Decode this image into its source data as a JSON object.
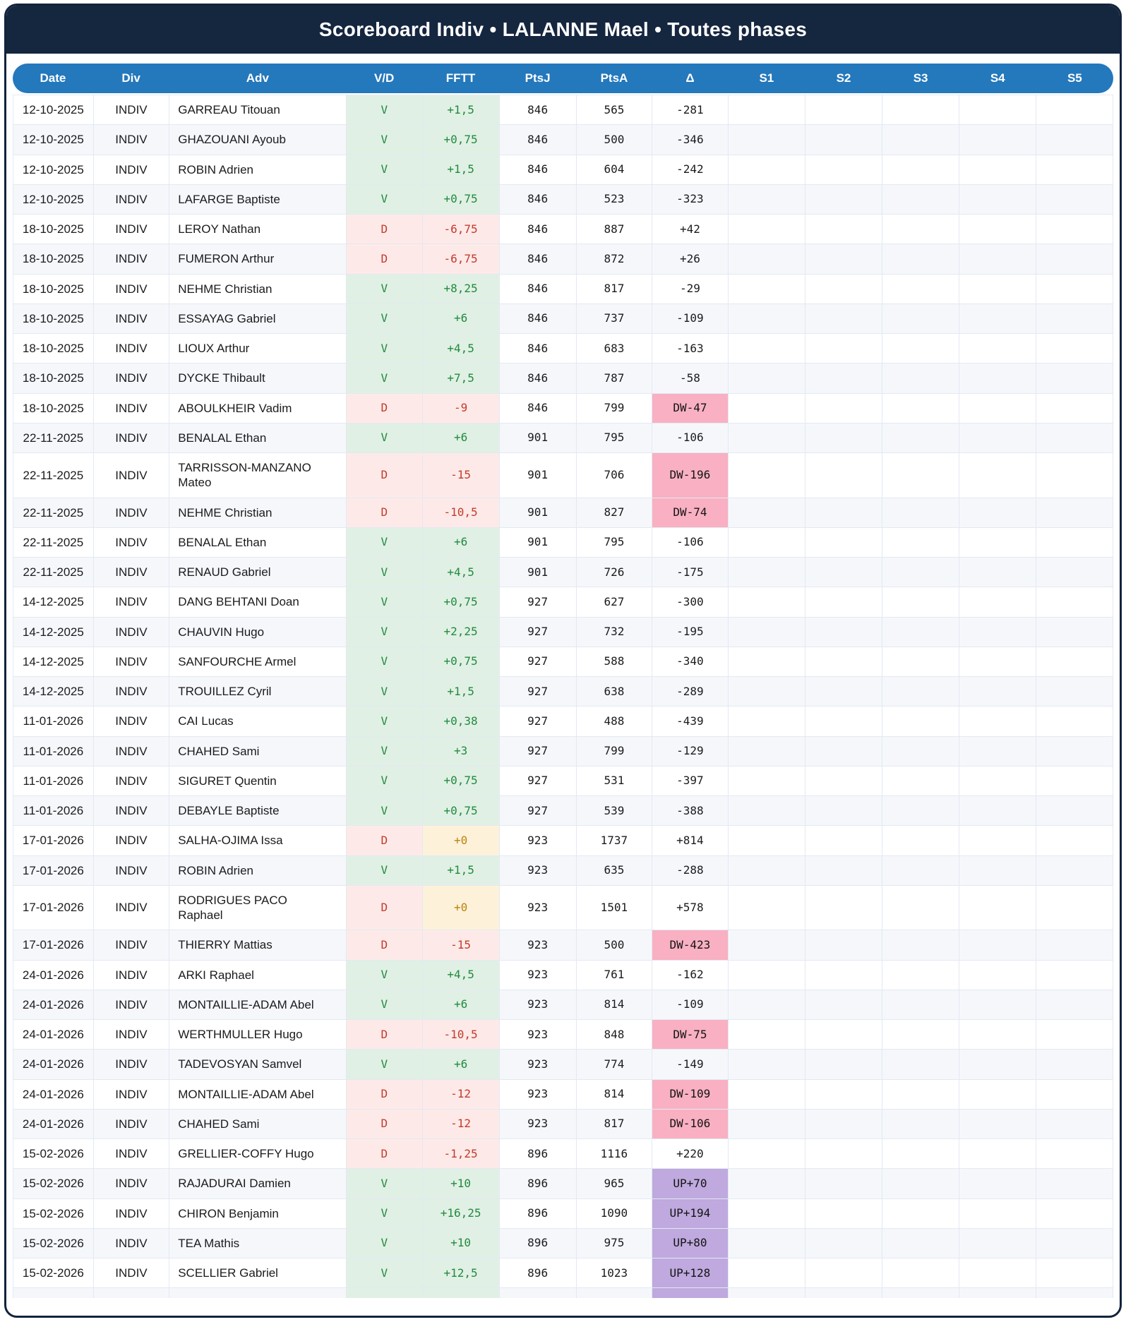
{
  "window": {
    "title": "Scoreboard Indiv • LALANNE Mael • Toutes phases"
  },
  "colors": {
    "title_bar_bg": "#15263f",
    "header_bg": "#2478bc",
    "win_bg": "#e1f0e5",
    "win_text": "#208b3d",
    "loss_bg": "#fdeae8",
    "loss_text": "#c33a2d",
    "zero_bg": "#fdf2d9",
    "zero_text": "#bc830e",
    "down_badge_bg": "#f8b0c2",
    "up_badge_bg": "#bfa9de",
    "row_alt_bg": "#f5f7fb"
  },
  "table": {
    "columns": [
      {
        "key": "date",
        "label": "Date"
      },
      {
        "key": "div",
        "label": "Div"
      },
      {
        "key": "adv",
        "label": "Adv"
      },
      {
        "key": "vd",
        "label": "V/D"
      },
      {
        "key": "fftt",
        "label": "FFTT"
      },
      {
        "key": "ptsj",
        "label": "PtsJ"
      },
      {
        "key": "ptsa",
        "label": "PtsA"
      },
      {
        "key": "delta",
        "label": "Δ"
      },
      {
        "key": "s1",
        "label": "S1"
      },
      {
        "key": "s2",
        "label": "S2"
      },
      {
        "key": "s3",
        "label": "S3"
      },
      {
        "key": "s4",
        "label": "S4"
      },
      {
        "key": "s5",
        "label": "S5"
      }
    ],
    "rows": [
      {
        "date": "12-10-2025",
        "div": "INDIV",
        "adv": "GARREAU Titouan",
        "vd": "V",
        "fftt": "+1,5",
        "ptsj": "846",
        "ptsa": "565",
        "delta": "-281"
      },
      {
        "date": "12-10-2025",
        "div": "INDIV",
        "adv": "GHAZOUANI Ayoub",
        "vd": "V",
        "fftt": "+0,75",
        "ptsj": "846",
        "ptsa": "500",
        "delta": "-346"
      },
      {
        "date": "12-10-2025",
        "div": "INDIV",
        "adv": "ROBIN Adrien",
        "vd": "V",
        "fftt": "+1,5",
        "ptsj": "846",
        "ptsa": "604",
        "delta": "-242"
      },
      {
        "date": "12-10-2025",
        "div": "INDIV",
        "adv": "LAFARGE Baptiste",
        "vd": "V",
        "fftt": "+0,75",
        "ptsj": "846",
        "ptsa": "523",
        "delta": "-323"
      },
      {
        "date": "18-10-2025",
        "div": "INDIV",
        "adv": "LEROY Nathan",
        "vd": "D",
        "fftt": "-6,75",
        "ptsj": "846",
        "ptsa": "887",
        "delta": "+42"
      },
      {
        "date": "18-10-2025",
        "div": "INDIV",
        "adv": "FUMERON Arthur",
        "vd": "D",
        "fftt": "-6,75",
        "ptsj": "846",
        "ptsa": "872",
        "delta": "+26"
      },
      {
        "date": "18-10-2025",
        "div": "INDIV",
        "adv": "NEHME Christian",
        "vd": "V",
        "fftt": "+8,25",
        "ptsj": "846",
        "ptsa": "817",
        "delta": "-29"
      },
      {
        "date": "18-10-2025",
        "div": "INDIV",
        "adv": "ESSAYAG Gabriel",
        "vd": "V",
        "fftt": "+6",
        "ptsj": "846",
        "ptsa": "737",
        "delta": "-109"
      },
      {
        "date": "18-10-2025",
        "div": "INDIV",
        "adv": "LIOUX Arthur",
        "vd": "V",
        "fftt": "+4,5",
        "ptsj": "846",
        "ptsa": "683",
        "delta": "-163"
      },
      {
        "date": "18-10-2025",
        "div": "INDIV",
        "adv": "DYCKE Thibault",
        "vd": "V",
        "fftt": "+7,5",
        "ptsj": "846",
        "ptsa": "787",
        "delta": "-58"
      },
      {
        "date": "18-10-2025",
        "div": "INDIV",
        "adv": "ABOULKHEIR Vadim",
        "vd": "D",
        "fftt": "-9",
        "ptsj": "846",
        "ptsa": "799",
        "delta": "DW-47"
      },
      {
        "date": "22-11-2025",
        "div": "INDIV",
        "adv": "BENALAL Ethan",
        "vd": "V",
        "fftt": "+6",
        "ptsj": "901",
        "ptsa": "795",
        "delta": "-106"
      },
      {
        "date": "22-11-2025",
        "div": "INDIV",
        "adv": "TARRISSON-MANZANO Mateo",
        "vd": "D",
        "fftt": "-15",
        "ptsj": "901",
        "ptsa": "706",
        "delta": "DW-196"
      },
      {
        "date": "22-11-2025",
        "div": "INDIV",
        "adv": "NEHME Christian",
        "vd": "D",
        "fftt": "-10,5",
        "ptsj": "901",
        "ptsa": "827",
        "delta": "DW-74"
      },
      {
        "date": "22-11-2025",
        "div": "INDIV",
        "adv": "BENALAL Ethan",
        "vd": "V",
        "fftt": "+6",
        "ptsj": "901",
        "ptsa": "795",
        "delta": "-106"
      },
      {
        "date": "22-11-2025",
        "div": "INDIV",
        "adv": "RENAUD Gabriel",
        "vd": "V",
        "fftt": "+4,5",
        "ptsj": "901",
        "ptsa": "726",
        "delta": "-175"
      },
      {
        "date": "14-12-2025",
        "div": "INDIV",
        "adv": "DANG BEHTANI Doan",
        "vd": "V",
        "fftt": "+0,75",
        "ptsj": "927",
        "ptsa": "627",
        "delta": "-300"
      },
      {
        "date": "14-12-2025",
        "div": "INDIV",
        "adv": "CHAUVIN Hugo",
        "vd": "V",
        "fftt": "+2,25",
        "ptsj": "927",
        "ptsa": "732",
        "delta": "-195"
      },
      {
        "date": "14-12-2025",
        "div": "INDIV",
        "adv": "SANFOURCHE Armel",
        "vd": "V",
        "fftt": "+0,75",
        "ptsj": "927",
        "ptsa": "588",
        "delta": "-340"
      },
      {
        "date": "14-12-2025",
        "div": "INDIV",
        "adv": "TROUILLEZ Cyril",
        "vd": "V",
        "fftt": "+1,5",
        "ptsj": "927",
        "ptsa": "638",
        "delta": "-289"
      },
      {
        "date": "11-01-2026",
        "div": "INDIV",
        "adv": "CAI Lucas",
        "vd": "V",
        "fftt": "+0,38",
        "ptsj": "927",
        "ptsa": "488",
        "delta": "-439"
      },
      {
        "date": "11-01-2026",
        "div": "INDIV",
        "adv": "CHAHED Sami",
        "vd": "V",
        "fftt": "+3",
        "ptsj": "927",
        "ptsa": "799",
        "delta": "-129"
      },
      {
        "date": "11-01-2026",
        "div": "INDIV",
        "adv": "SIGURET Quentin",
        "vd": "V",
        "fftt": "+0,75",
        "ptsj": "927",
        "ptsa": "531",
        "delta": "-397"
      },
      {
        "date": "11-01-2026",
        "div": "INDIV",
        "adv": "DEBAYLE Baptiste",
        "vd": "V",
        "fftt": "+0,75",
        "ptsj": "927",
        "ptsa": "539",
        "delta": "-388"
      },
      {
        "date": "17-01-2026",
        "div": "INDIV",
        "adv": "SALHA-OJIMA Issa",
        "vd": "D",
        "fftt": "+0",
        "ptsj": "923",
        "ptsa": "1737",
        "delta": "+814"
      },
      {
        "date": "17-01-2026",
        "div": "INDIV",
        "adv": "ROBIN Adrien",
        "vd": "V",
        "fftt": "+1,5",
        "ptsj": "923",
        "ptsa": "635",
        "delta": "-288"
      },
      {
        "date": "17-01-2026",
        "div": "INDIV",
        "adv": "RODRIGUES PACO Raphael",
        "vd": "D",
        "fftt": "+0",
        "ptsj": "923",
        "ptsa": "1501",
        "delta": "+578"
      },
      {
        "date": "17-01-2026",
        "div": "INDIV",
        "adv": "THIERRY Mattias",
        "vd": "D",
        "fftt": "-15",
        "ptsj": "923",
        "ptsa": "500",
        "delta": "DW-423"
      },
      {
        "date": "24-01-2026",
        "div": "INDIV",
        "adv": "ARKI Raphael",
        "vd": "V",
        "fftt": "+4,5",
        "ptsj": "923",
        "ptsa": "761",
        "delta": "-162"
      },
      {
        "date": "24-01-2026",
        "div": "INDIV",
        "adv": "MONTAILLIE-ADAM Abel",
        "vd": "V",
        "fftt": "+6",
        "ptsj": "923",
        "ptsa": "814",
        "delta": "-109"
      },
      {
        "date": "24-01-2026",
        "div": "INDIV",
        "adv": "WERTHMULLER Hugo",
        "vd": "D",
        "fftt": "-10,5",
        "ptsj": "923",
        "ptsa": "848",
        "delta": "DW-75"
      },
      {
        "date": "24-01-2026",
        "div": "INDIV",
        "adv": "TADEVOSYAN Samvel",
        "vd": "V",
        "fftt": "+6",
        "ptsj": "923",
        "ptsa": "774",
        "delta": "-149"
      },
      {
        "date": "24-01-2026",
        "div": "INDIV",
        "adv": "MONTAILLIE-ADAM Abel",
        "vd": "D",
        "fftt": "-12",
        "ptsj": "923",
        "ptsa": "814",
        "delta": "DW-109"
      },
      {
        "date": "24-01-2026",
        "div": "INDIV",
        "adv": "CHAHED Sami",
        "vd": "D",
        "fftt": "-12",
        "ptsj": "923",
        "ptsa": "817",
        "delta": "DW-106"
      },
      {
        "date": "15-02-2026",
        "div": "INDIV",
        "adv": "GRELLIER-COFFY Hugo",
        "vd": "D",
        "fftt": "-1,25",
        "ptsj": "896",
        "ptsa": "1116",
        "delta": "+220"
      },
      {
        "date": "15-02-2026",
        "div": "INDIV",
        "adv": "RAJADURAI Damien",
        "vd": "V",
        "fftt": "+10",
        "ptsj": "896",
        "ptsa": "965",
        "delta": "UP+70"
      },
      {
        "date": "15-02-2026",
        "div": "INDIV",
        "adv": "CHIRON Benjamin",
        "vd": "V",
        "fftt": "+16,25",
        "ptsj": "896",
        "ptsa": "1090",
        "delta": "UP+194"
      },
      {
        "date": "15-02-2026",
        "div": "INDIV",
        "adv": "TEA Mathis",
        "vd": "V",
        "fftt": "+10",
        "ptsj": "896",
        "ptsa": "975",
        "delta": "UP+80"
      },
      {
        "date": "15-02-2026",
        "div": "INDIV",
        "adv": "SCELLIER Gabriel",
        "vd": "V",
        "fftt": "+12,5",
        "ptsj": "896",
        "ptsa": "1023",
        "delta": "UP+128"
      }
    ],
    "partial_row": {
      "result_style": "win",
      "fftt_style": "pos",
      "delta_style": "up"
    }
  }
}
